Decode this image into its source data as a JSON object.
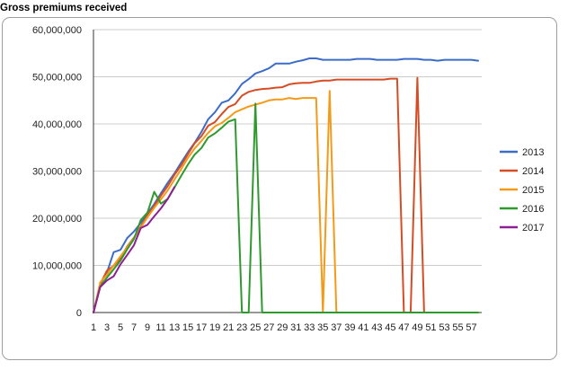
{
  "chart_data": {
    "type": "line",
    "title": "Gross premiums received",
    "xlabel": "",
    "ylabel": "",
    "ylim": [
      0,
      60000000
    ],
    "yticks": [
      0,
      10000000,
      20000000,
      30000000,
      40000000,
      50000000,
      60000000
    ],
    "ytick_labels": [
      "0",
      "10,000,000",
      "20,000,000",
      "30,000,000",
      "40,000,000",
      "50,000,000",
      "60,000,000"
    ],
    "xlim": [
      1,
      58
    ],
    "xtick_labels": [
      "1",
      "3",
      "5",
      "7",
      "9",
      "11",
      "13",
      "15",
      "17",
      "19",
      "21",
      "23",
      "25",
      "27",
      "29",
      "31",
      "33",
      "35",
      "37",
      "39",
      "41",
      "43",
      "45",
      "47",
      "49",
      "51",
      "53",
      "55",
      "57"
    ],
    "grid": true,
    "legend_position": "right",
    "series": [
      {
        "name": "2013",
        "color": "#3c6cc7",
        "values": [
          0,
          6000000,
          8500000,
          12800000,
          13300000,
          15800000,
          17200000,
          19000000,
          21000000,
          23000000,
          25300000,
          27500000,
          29500000,
          31800000,
          34000000,
          36000000,
          38300000,
          41000000,
          42500000,
          44500000,
          45000000,
          46500000,
          48500000,
          49500000,
          50700000,
          51200000,
          51800000,
          52800000,
          52800000,
          52800000,
          53200000,
          53500000,
          53900000,
          53900000,
          53600000,
          53600000,
          53600000,
          53600000,
          53600000,
          53800000,
          53800000,
          53800000,
          53600000,
          53600000,
          53600000,
          53600000,
          53800000,
          53800000,
          53800000,
          53600000,
          53600000,
          53400000,
          53600000,
          53600000,
          53600000,
          53600000,
          53600000,
          53400000
        ]
      },
      {
        "name": "2014",
        "color": "#d64c24",
        "values": [
          0,
          6000000,
          8900000,
          9900000,
          11500000,
          14000000,
          15900000,
          18200000,
          20600000,
          22600000,
          24800000,
          26800000,
          29200000,
          31200000,
          33600000,
          35900000,
          37400000,
          39600000,
          40400000,
          42100000,
          43600000,
          44200000,
          46000000,
          46800000,
          47200000,
          47400000,
          47500000,
          47700000,
          47800000,
          48400000,
          48600000,
          48700000,
          48700000,
          49000000,
          49200000,
          49200000,
          49400000,
          49400000,
          49400000,
          49400000,
          49400000,
          49400000,
          49400000,
          49400000,
          49600000,
          49600000,
          0,
          0,
          49800000,
          0,
          0,
          0,
          0,
          0,
          0,
          0,
          0,
          0
        ]
      },
      {
        "name": "2015",
        "color": "#f39a18",
        "values": [
          0,
          6400000,
          8000000,
          10000000,
          11900000,
          13800000,
          15800000,
          18000000,
          20200000,
          22200000,
          24000000,
          25900000,
          28200000,
          30400000,
          32800000,
          34800000,
          36400000,
          38100000,
          39500000,
          40200000,
          41300000,
          42500000,
          43100000,
          43700000,
          44100000,
          44500000,
          45000000,
          45200000,
          45200000,
          45500000,
          45300000,
          45500000,
          45500000,
          45500000,
          0,
          47000000,
          0,
          0,
          0,
          0,
          0,
          0,
          0,
          0,
          0,
          0,
          0,
          0,
          0,
          0,
          0,
          0,
          0,
          0,
          0,
          0,
          0,
          0
        ]
      },
      {
        "name": "2016",
        "color": "#2e9a2e",
        "values": [
          0,
          5500000,
          7400000,
          9200000,
          11000000,
          13400000,
          15600000,
          19600000,
          21200000,
          25600000,
          23100000,
          24100000,
          26500000,
          29000000,
          31400000,
          33500000,
          34900000,
          37100000,
          38000000,
          39200000,
          40500000,
          41000000,
          0,
          0,
          44300000,
          0,
          0,
          0,
          0,
          0,
          0,
          0,
          0,
          0,
          0,
          0,
          0,
          0,
          0,
          0,
          0,
          0,
          0,
          0,
          0,
          0,
          0,
          0,
          0,
          0,
          0,
          0,
          0,
          0,
          0,
          0,
          0,
          0
        ]
      },
      {
        "name": "2017",
        "color": "#8e1f95",
        "values": [
          0,
          5400000,
          6800000,
          7700000,
          10200000,
          12200000,
          14300000,
          17900000,
          18600000,
          20400000,
          22100000,
          24100000,
          26600000
        ]
      }
    ]
  }
}
